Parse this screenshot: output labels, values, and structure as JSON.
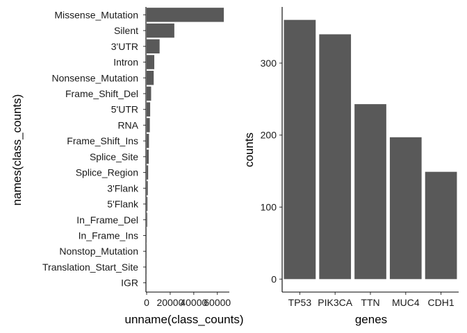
{
  "colors": {
    "bar": "#595959",
    "axis": "#000000",
    "text": "#1a1a1a",
    "background": "#ffffff"
  },
  "chart_data": [
    {
      "type": "bar",
      "orientation": "horizontal",
      "categories": [
        "Missense_Mutation",
        "Silent",
        "3'UTR",
        "Intron",
        "Nonsense_Mutation",
        "Frame_Shift_Del",
        "5'UTR",
        "RNA",
        "Frame_Shift_Ins",
        "Splice_Site",
        "Splice_Region",
        "3'Flank",
        "5'Flank",
        "In_Frame_Del",
        "In_Frame_Ins",
        "Nonstop_Mutation",
        "Translation_Start_Site",
        "IGR"
      ],
      "values": [
        65500,
        23500,
        11000,
        6500,
        6000,
        3800,
        3000,
        2700,
        2000,
        1800,
        1300,
        1000,
        700,
        500,
        120,
        80,
        60,
        20
      ],
      "xlabel": "unname(class_counts)",
      "ylabel": "names(class_counts)",
      "xlim": [
        0,
        69000
      ],
      "xticks": [
        0,
        20000,
        40000,
        60000
      ],
      "xtick_labels": [
        "0",
        "20000",
        "40000",
        "60000"
      ],
      "grid": false
    },
    {
      "type": "bar",
      "orientation": "vertical",
      "categories": [
        "TP53",
        "PIK3CA",
        "TTN",
        "MUC4",
        "CDH1"
      ],
      "values": [
        360,
        340,
        243,
        197,
        149
      ],
      "xlabel": "genes",
      "ylabel": "counts",
      "ylim": [
        -18,
        378
      ],
      "yticks": [
        0,
        100,
        200,
        300
      ],
      "ytick_labels": [
        "0",
        "100",
        "200",
        "300"
      ],
      "grid": false
    }
  ]
}
